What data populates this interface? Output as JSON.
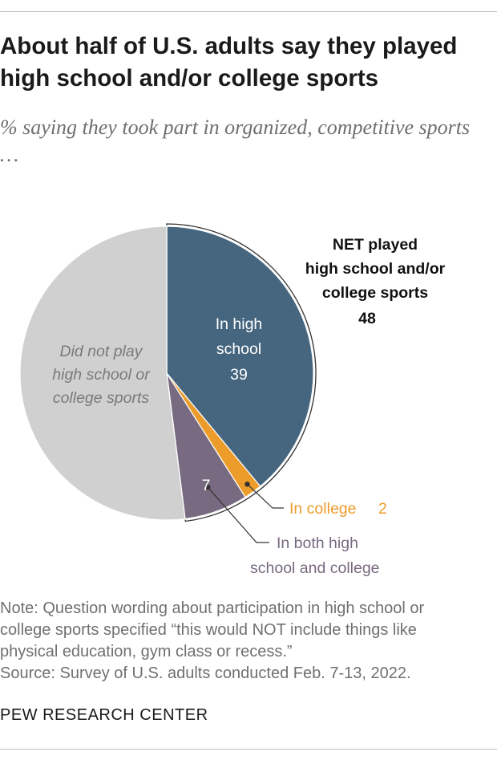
{
  "header": {
    "title": "About half of U.S. adults say they played high school and/or college sports",
    "subtitle": "% saying they took part in organized, competitive sports …"
  },
  "chart_data": {
    "type": "pie",
    "slices": [
      {
        "name": "In high school",
        "value": 39,
        "color": "#46667f",
        "label_lines": [
          "In high",
          "school"
        ],
        "value_label": "39"
      },
      {
        "name": "In college",
        "value": 2,
        "color": "#ec9c2b",
        "label_lines": [
          "In college"
        ],
        "value_label": "2"
      },
      {
        "name": "In both high school and college",
        "value": 7,
        "color": "#786a80",
        "label_lines": [
          "In both high",
          "school and college"
        ],
        "value_label": "7"
      },
      {
        "name": "Did not play high school or college sports",
        "value": 52,
        "color": "#d0d0d0",
        "label_lines": [
          "Did not play",
          "high school or",
          "college sports"
        ],
        "value_label": ""
      }
    ],
    "net": {
      "label_lines": [
        "NET played",
        "high school and/or",
        "college sports"
      ],
      "value": "48"
    }
  },
  "footer": {
    "note_lines": [
      "Note: Question wording about participation in high school or",
      "college sports specified “this would NOT include things like",
      "physical education, gym class or recess.”",
      "Source: Survey of U.S. adults conducted Feb. 7-13, 2022."
    ],
    "source_org": "PEW RESEARCH CENTER"
  },
  "colors": {
    "high_school": "#46667f",
    "college": "#ec9c2b",
    "both": "#786a80",
    "not_played": "#d0d0d0",
    "note_text": "#707070"
  }
}
